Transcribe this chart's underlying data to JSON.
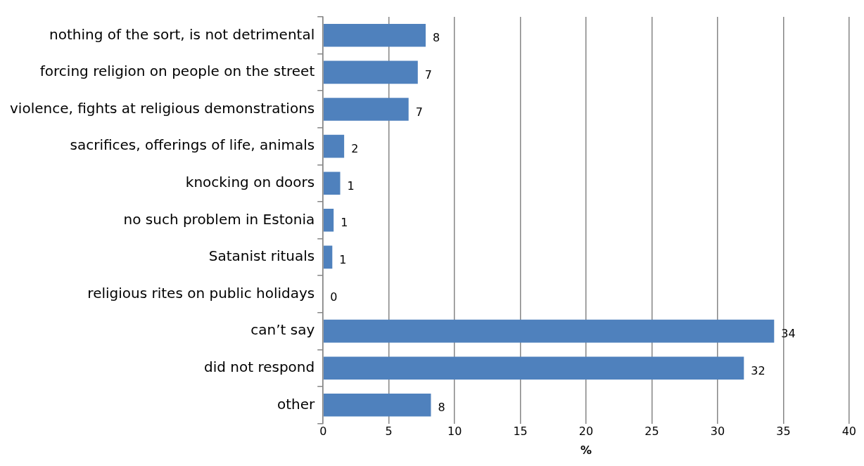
{
  "chart_data": {
    "type": "bar",
    "orientation": "horizontal",
    "xlabel": "%",
    "categories": [
      "nothing of the sort, is not detrimental",
      "forcing religion on people on the street",
      "violence, fights at religious demonstrations",
      "sacrifices, offerings of life, animals",
      "knocking on doors",
      "no such problem in Estonia",
      "Satanist rituals",
      "religious rites on public holidays",
      "can’t say",
      "did not respond",
      "other"
    ],
    "values": [
      7.8,
      7.2,
      6.5,
      1.6,
      1.3,
      0.8,
      0.7,
      0,
      34.3,
      32.0,
      8.2
    ],
    "value_labels": [
      "8",
      "7",
      "7",
      "2",
      "1",
      "1",
      "1",
      "0",
      "34",
      "32",
      "8"
    ],
    "color": "#4f81bd",
    "xlim": [
      0,
      40
    ],
    "xticks": [
      0,
      5,
      10,
      15,
      20,
      25,
      30,
      35,
      40
    ],
    "grid": "x",
    "legend": false
  }
}
